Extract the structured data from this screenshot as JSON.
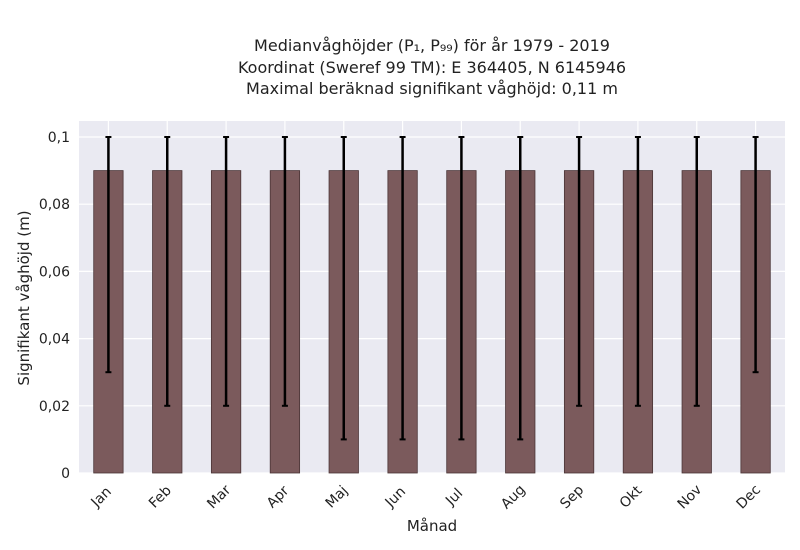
{
  "chart_data": {
    "type": "bar",
    "title_lines": [
      "Medianvåghöjder (P₁, P₉₉) för år 1979 - 2019",
      "Koordinat (Sweref 99 TM): E 364405, N 6145946",
      "Maximal beräknad signifikant våghöjd: 0,11 m"
    ],
    "xlabel": "Månad",
    "ylabel": "Signifikant våghöjd (m)",
    "categories": [
      "Jan",
      "Feb",
      "Mar",
      "Apr",
      "Maj",
      "Jun",
      "Jul",
      "Aug",
      "Sep",
      "Okt",
      "Nov",
      "Dec"
    ],
    "values": [
      0.09,
      0.09,
      0.09,
      0.09,
      0.09,
      0.09,
      0.09,
      0.09,
      0.09,
      0.09,
      0.09,
      0.09
    ],
    "error_low": [
      0.03,
      0.02,
      0.02,
      0.02,
      0.01,
      0.01,
      0.01,
      0.01,
      0.02,
      0.02,
      0.02,
      0.03
    ],
    "error_high": [
      0.1,
      0.1,
      0.1,
      0.1,
      0.1,
      0.1,
      0.1,
      0.1,
      0.1,
      0.1,
      0.1,
      0.1
    ],
    "ylim": [
      0,
      0.1
    ],
    "yticks": [
      0,
      0.02,
      0.04,
      0.06,
      0.08,
      0.1
    ],
    "ytick_labels": [
      "0",
      "0,02",
      "0,04",
      "0,06",
      "0,08",
      "0,1"
    ],
    "grid": true,
    "colors": {
      "background": "#eaeaf2",
      "grid": "#ffffff",
      "bar": "#7b5a5c",
      "bar_edge": "#4a3436",
      "error": "#000000"
    }
  }
}
